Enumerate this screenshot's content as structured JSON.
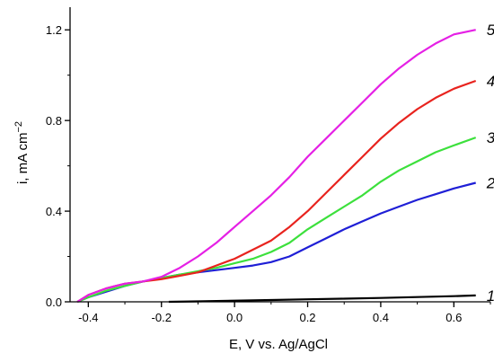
{
  "chart_data": {
    "type": "line",
    "title": "",
    "xlabel": "E, V vs. Ag/AgCl",
    "ylabel_main": "i, mA cm",
    "ylabel_sup": "−2",
    "xlim": [
      -0.45,
      0.7
    ],
    "ylim": [
      0.0,
      1.3
    ],
    "xticks": [
      -0.4,
      -0.2,
      0.0,
      0.2,
      0.4,
      0.6
    ],
    "xtick_labels": [
      "-0.4",
      "-0.2",
      "0.0",
      "0.2",
      "0.4",
      "0.6"
    ],
    "yticks": [
      0.0,
      0.4,
      0.8,
      1.2
    ],
    "ytick_labels": [
      "0.0",
      "0.4",
      "0.8",
      "1.2"
    ],
    "grid": false,
    "legend": "none",
    "series": [
      {
        "label": "1",
        "color": "#000000",
        "x": [
          -0.18,
          -0.1,
          0.0,
          0.1,
          0.2,
          0.3,
          0.4,
          0.5,
          0.6,
          0.66
        ],
        "y": [
          0.0,
          0.002,
          0.005,
          0.008,
          0.011,
          0.014,
          0.017,
          0.021,
          0.025,
          0.028
        ]
      },
      {
        "label": "2",
        "color": "#1f1fd6",
        "x": [
          -0.43,
          -0.4,
          -0.35,
          -0.3,
          -0.25,
          -0.2,
          -0.15,
          -0.1,
          -0.05,
          0.0,
          0.05,
          0.1,
          0.15,
          0.2,
          0.25,
          0.3,
          0.35,
          0.4,
          0.45,
          0.5,
          0.55,
          0.6,
          0.66
        ],
        "y": [
          0.0,
          0.02,
          0.045,
          0.07,
          0.09,
          0.105,
          0.12,
          0.13,
          0.14,
          0.15,
          0.16,
          0.175,
          0.2,
          0.24,
          0.28,
          0.32,
          0.355,
          0.39,
          0.42,
          0.45,
          0.475,
          0.5,
          0.525
        ]
      },
      {
        "label": "3",
        "color": "#3ce03c",
        "x": [
          -0.43,
          -0.4,
          -0.35,
          -0.3,
          -0.25,
          -0.2,
          -0.15,
          -0.1,
          -0.05,
          0.0,
          0.05,
          0.1,
          0.15,
          0.2,
          0.25,
          0.3,
          0.35,
          0.4,
          0.45,
          0.5,
          0.55,
          0.6,
          0.66
        ],
        "y": [
          0.0,
          0.02,
          0.05,
          0.07,
          0.09,
          0.105,
          0.12,
          0.135,
          0.15,
          0.17,
          0.19,
          0.22,
          0.26,
          0.32,
          0.37,
          0.42,
          0.47,
          0.53,
          0.58,
          0.62,
          0.66,
          0.69,
          0.725
        ]
      },
      {
        "label": "4",
        "color": "#e8231e",
        "x": [
          -0.43,
          -0.4,
          -0.35,
          -0.3,
          -0.25,
          -0.2,
          -0.15,
          -0.1,
          -0.05,
          0.0,
          0.05,
          0.1,
          0.15,
          0.2,
          0.25,
          0.3,
          0.35,
          0.4,
          0.45,
          0.5,
          0.55,
          0.6,
          0.66
        ],
        "y": [
          0.0,
          0.03,
          0.06,
          0.08,
          0.09,
          0.1,
          0.115,
          0.13,
          0.16,
          0.19,
          0.23,
          0.27,
          0.33,
          0.4,
          0.48,
          0.56,
          0.64,
          0.72,
          0.79,
          0.85,
          0.9,
          0.94,
          0.975
        ]
      },
      {
        "label": "5",
        "color": "#e520e5",
        "x": [
          -0.43,
          -0.4,
          -0.35,
          -0.3,
          -0.25,
          -0.2,
          -0.15,
          -0.1,
          -0.05,
          0.0,
          0.05,
          0.1,
          0.15,
          0.2,
          0.25,
          0.3,
          0.35,
          0.4,
          0.45,
          0.5,
          0.55,
          0.6,
          0.66
        ],
        "y": [
          0.0,
          0.03,
          0.06,
          0.08,
          0.09,
          0.11,
          0.15,
          0.2,
          0.26,
          0.33,
          0.4,
          0.47,
          0.55,
          0.64,
          0.72,
          0.8,
          0.88,
          0.96,
          1.03,
          1.09,
          1.14,
          1.18,
          1.2
        ]
      }
    ]
  }
}
